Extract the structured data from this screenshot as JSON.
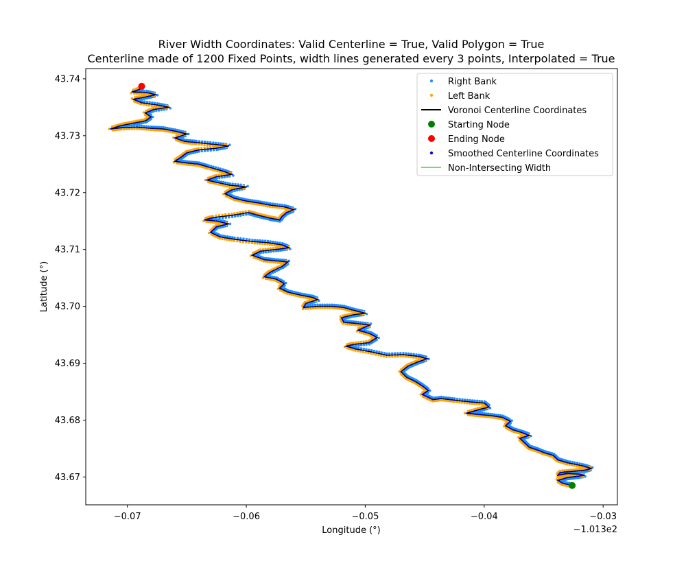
{
  "chart_data": {
    "type": "scatter",
    "title_line1": "River Width Coordinates: Valid Centerline = True, Valid Polygon = True",
    "title_line2": "Centerline made of 1200 Fixed Points, width lines generated every 3 points, Interpolated = True",
    "xlabel": "Longitude (°)",
    "ylabel": "Latitude (°)",
    "x_offset_label": "−1.013e2",
    "x_offset": -101.3,
    "xlim": [
      -0.0735,
      -0.0288
    ],
    "ylim": [
      43.6651,
      43.7418
    ],
    "x_ticks": [
      -0.07,
      -0.06,
      -0.05,
      -0.04,
      -0.03
    ],
    "x_tick_labels": [
      "−0.07",
      "−0.06",
      "−0.05",
      "−0.04",
      "−0.03"
    ],
    "y_ticks": [
      43.67,
      43.68,
      43.69,
      43.7,
      43.71,
      43.72,
      43.73,
      43.74
    ],
    "y_tick_labels": [
      "43.67",
      "43.68",
      "43.69",
      "43.70",
      "43.71",
      "43.72",
      "43.73",
      "43.74"
    ],
    "grid": false,
    "legend_position": "top-right",
    "legend": [
      {
        "label": "Right Bank",
        "marker": "dot-small",
        "color": "#1f8fff"
      },
      {
        "label": "Left Bank",
        "marker": "dot-small",
        "color": "#ffa500"
      },
      {
        "label": "Voronoi Centerline Coordinates",
        "marker": "line",
        "color": "#000000"
      },
      {
        "label": "Starting Node",
        "marker": "dot-large",
        "color": "#008000"
      },
      {
        "label": "Ending Node",
        "marker": "dot-large",
        "color": "#ff0000"
      },
      {
        "label": "Smoothed Centerline Coordinates",
        "marker": "dot-small",
        "color": "#0000ff"
      },
      {
        "label": "Non-Intersecting Width",
        "marker": "thin-line",
        "color": "#00a000"
      }
    ],
    "bank_offset": 0.00028,
    "start_node": {
      "x": -0.0326,
      "y": 43.6685
    },
    "end_node": {
      "x": -0.0688,
      "y": 43.7387
    },
    "centerline": [
      [
        -0.0326,
        43.6685
      ],
      [
        -0.0334,
        43.6689
      ],
      [
        -0.0338,
        43.6694
      ],
      [
        -0.033,
        43.6699
      ],
      [
        -0.0322,
        43.6701
      ],
      [
        -0.0316,
        43.6703
      ],
      [
        -0.032,
        43.6705
      ],
      [
        -0.033,
        43.6706
      ],
      [
        -0.0338,
        43.6703
      ],
      [
        -0.0336,
        43.6708
      ],
      [
        -0.0325,
        43.671
      ],
      [
        -0.0315,
        43.6712
      ],
      [
        -0.031,
        43.6715
      ],
      [
        -0.0318,
        43.672
      ],
      [
        -0.033,
        43.6725
      ],
      [
        -0.0338,
        43.673
      ],
      [
        -0.0342,
        43.6738
      ],
      [
        -0.035,
        43.6743
      ],
      [
        -0.0356,
        43.6748
      ],
      [
        -0.0362,
        43.6752
      ],
      [
        -0.0366,
        43.676
      ],
      [
        -0.037,
        43.6768
      ],
      [
        -0.0362,
        43.6773
      ],
      [
        -0.0368,
        43.6778
      ],
      [
        -0.0376,
        43.6783
      ],
      [
        -0.0382,
        43.679
      ],
      [
        -0.0378,
        43.6798
      ],
      [
        -0.0385,
        43.6805
      ],
      [
        -0.0395,
        43.6808
      ],
      [
        -0.0405,
        43.681
      ],
      [
        -0.0415,
        43.6812
      ],
      [
        -0.0405,
        43.6818
      ],
      [
        -0.0396,
        43.6823
      ],
      [
        -0.04,
        43.683
      ],
      [
        -0.0412,
        43.6832
      ],
      [
        -0.0425,
        43.6835
      ],
      [
        -0.0436,
        43.6838
      ],
      [
        -0.0443,
        43.6836
      ],
      [
        -0.0447,
        43.684
      ],
      [
        -0.0452,
        43.6845
      ],
      [
        -0.0447,
        43.6852
      ],
      [
        -0.0452,
        43.686
      ],
      [
        -0.0458,
        43.6868
      ],
      [
        -0.0465,
        43.6875
      ],
      [
        -0.047,
        43.6885
      ],
      [
        -0.0464,
        43.6895
      ],
      [
        -0.0456,
        43.6902
      ],
      [
        -0.0448,
        43.6908
      ],
      [
        -0.0455,
        43.6912
      ],
      [
        -0.0468,
        43.6915
      ],
      [
        -0.0482,
        43.6914
      ],
      [
        -0.0495,
        43.692
      ],
      [
        -0.0508,
        43.6925
      ],
      [
        -0.0516,
        43.693
      ],
      [
        -0.051,
        43.6933
      ],
      [
        -0.0497,
        43.6936
      ],
      [
        -0.049,
        43.6945
      ],
      [
        -0.0496,
        43.6952
      ],
      [
        -0.0506,
        43.6958
      ],
      [
        -0.0501,
        43.6963
      ],
      [
        -0.0496,
        43.6967
      ],
      [
        -0.0508,
        43.697
      ],
      [
        -0.0518,
        43.6972
      ],
      [
        -0.052,
        43.698
      ],
      [
        -0.051,
        43.6985
      ],
      [
        -0.05,
        43.6988
      ],
      [
        -0.0508,
        43.6992
      ],
      [
        -0.0518,
        43.6998
      ],
      [
        -0.0528,
        43.7
      ],
      [
        -0.054,
        43.7
      ],
      [
        -0.0552,
        43.6998
      ],
      [
        -0.055,
        43.7005
      ],
      [
        -0.054,
        43.7012
      ],
      [
        -0.0545,
        43.7016
      ],
      [
        -0.0555,
        43.702
      ],
      [
        -0.0565,
        43.7025
      ],
      [
        -0.0572,
        43.7032
      ],
      [
        -0.0568,
        43.704
      ],
      [
        -0.0575,
        43.7048
      ],
      [
        -0.0585,
        43.7052
      ],
      [
        -0.058,
        43.706
      ],
      [
        -0.057,
        43.707
      ],
      [
        -0.0565,
        43.7078
      ],
      [
        -0.0575,
        43.708
      ],
      [
        -0.0585,
        43.7082
      ],
      [
        -0.0595,
        43.709
      ],
      [
        -0.0588,
        43.7097
      ],
      [
        -0.0575,
        43.71
      ],
      [
        -0.0564,
        43.7103
      ],
      [
        -0.057,
        43.7108
      ],
      [
        -0.0582,
        43.7112
      ],
      [
        -0.0595,
        43.7114
      ],
      [
        -0.061,
        43.7118
      ],
      [
        -0.0622,
        43.7122
      ],
      [
        -0.063,
        43.713
      ],
      [
        -0.0625,
        43.714
      ],
      [
        -0.0615,
        43.7145
      ],
      [
        -0.0625,
        43.715
      ],
      [
        -0.0635,
        43.7152
      ],
      [
        -0.0628,
        43.7156
      ],
      [
        -0.0612,
        43.716
      ],
      [
        -0.0598,
        43.7165
      ],
      [
        -0.059,
        43.716
      ],
      [
        -0.058,
        43.7155
      ],
      [
        -0.0572,
        43.7152
      ],
      [
        -0.057,
        43.7158
      ],
      [
        -0.0566,
        43.7165
      ],
      [
        -0.056,
        43.717
      ],
      [
        -0.0568,
        43.7175
      ],
      [
        -0.058,
        43.7178
      ],
      [
        -0.059,
        43.7182
      ],
      [
        -0.06,
        43.7185
      ],
      [
        -0.061,
        43.719
      ],
      [
        -0.0618,
        43.7198
      ],
      [
        -0.0612,
        43.7205
      ],
      [
        -0.06,
        43.721
      ],
      [
        -0.0614,
        43.7213
      ],
      [
        -0.0625,
        43.7218
      ],
      [
        -0.0633,
        43.7222
      ],
      [
        -0.0625,
        43.7228
      ],
      [
        -0.0612,
        43.7232
      ],
      [
        -0.062,
        43.7238
      ],
      [
        -0.0632,
        43.7245
      ],
      [
        -0.064,
        43.725
      ],
      [
        -0.065,
        43.7252
      ],
      [
        -0.066,
        43.7255
      ],
      [
        -0.0655,
        43.7262
      ],
      [
        -0.065,
        43.727
      ],
      [
        -0.064,
        43.7275
      ],
      [
        -0.0625,
        43.7278
      ],
      [
        -0.0615,
        43.7282
      ],
      [
        -0.0628,
        43.7285
      ],
      [
        -0.0642,
        43.7288
      ],
      [
        -0.0652,
        43.729
      ],
      [
        -0.066,
        43.7296
      ],
      [
        -0.065,
        43.7303
      ],
      [
        -0.066,
        43.7308
      ],
      [
        -0.067,
        43.7312
      ],
      [
        -0.068,
        43.7313
      ],
      [
        -0.0692,
        43.7315
      ],
      [
        -0.0705,
        43.7314
      ],
      [
        -0.0714,
        43.7312
      ],
      [
        -0.0705,
        43.7318
      ],
      [
        -0.0695,
        43.7322
      ],
      [
        -0.0685,
        43.7326
      ],
      [
        -0.068,
        43.7333
      ],
      [
        -0.0685,
        43.734
      ],
      [
        -0.0678,
        43.7346
      ],
      [
        -0.0665,
        43.735
      ],
      [
        -0.0675,
        43.7354
      ],
      [
        -0.0688,
        43.7358
      ],
      [
        -0.0695,
        43.7364
      ],
      [
        -0.0685,
        43.7368
      ],
      [
        -0.0676,
        43.7372
      ],
      [
        -0.0684,
        43.7376
      ],
      [
        -0.0696,
        43.7377
      ],
      [
        -0.0688,
        43.7383
      ],
      [
        -0.0688,
        43.7387
      ]
    ]
  }
}
